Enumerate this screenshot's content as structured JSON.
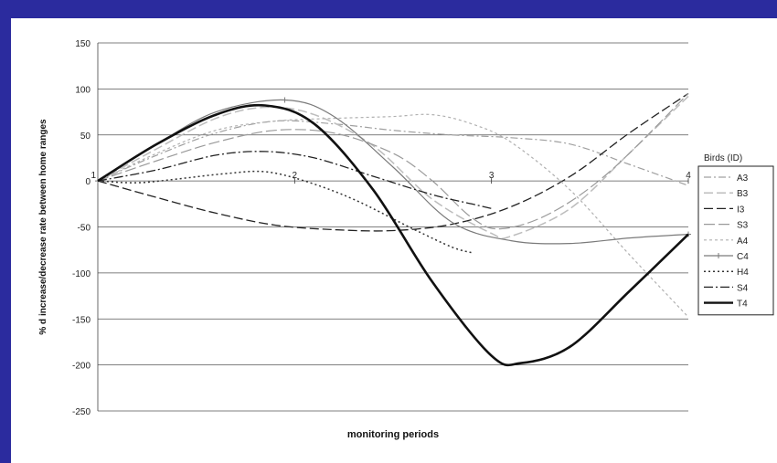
{
  "colors": {
    "slide_background": "#2b2b9e",
    "panel_background": "#ffffff"
  },
  "chart_data": {
    "type": "line",
    "title": "",
    "xlabel": "monitoring periods",
    "ylabel": "% d increase/decrease rate between home ranges",
    "x_ticks": [
      "1",
      "2",
      "3",
      "4"
    ],
    "xlim": [
      1,
      4
    ],
    "ylim": [
      -250,
      150
    ],
    "y_ticks": [
      150,
      100,
      50,
      0,
      -50,
      -100,
      -150,
      -200,
      -250
    ],
    "grid": "horizontal",
    "legend_title": "Birds (ID)",
    "legend_position": "right",
    "series": [
      {
        "name": "A3",
        "color": "#a0a0a0",
        "dash": "8,3,2,3",
        "width": 1.2,
        "points": [
          [
            1,
            0
          ],
          [
            1.3,
            28
          ],
          [
            1.6,
            52
          ],
          [
            1.9,
            65
          ],
          [
            2.2,
            62
          ],
          [
            2.5,
            55
          ],
          [
            2.8,
            50
          ],
          [
            3.1,
            47
          ],
          [
            3.4,
            40
          ],
          [
            3.7,
            18
          ],
          [
            4,
            -5
          ]
        ]
      },
      {
        "name": "B3",
        "color": "#bdbdbd",
        "dash": "10,4",
        "width": 1.5,
        "points": [
          [
            1,
            0
          ],
          [
            1.3,
            35
          ],
          [
            1.6,
            68
          ],
          [
            1.85,
            80
          ],
          [
            2.1,
            72
          ],
          [
            2.4,
            38
          ],
          [
            2.7,
            -20
          ],
          [
            3.0,
            -57
          ],
          [
            3.1,
            -60
          ],
          [
            3.4,
            -30
          ],
          [
            3.7,
            30
          ],
          [
            4,
            92
          ]
        ]
      },
      {
        "name": "I3",
        "color": "#222222",
        "dash": "10,4",
        "width": 1.3,
        "points": [
          [
            1,
            0
          ],
          [
            1.3,
            -18
          ],
          [
            1.6,
            -35
          ],
          [
            1.9,
            -48
          ],
          [
            2.2,
            -53
          ],
          [
            2.5,
            -54
          ],
          [
            2.8,
            -47
          ],
          [
            3.1,
            -28
          ],
          [
            3.4,
            5
          ],
          [
            3.7,
            52
          ],
          [
            4,
            95
          ]
        ]
      },
      {
        "name": "S3",
        "color": "#9a9a9a",
        "dash": "12,4",
        "width": 1.2,
        "points": [
          [
            1,
            0
          ],
          [
            1.3,
            22
          ],
          [
            1.6,
            42
          ],
          [
            1.9,
            55
          ],
          [
            2.2,
            52
          ],
          [
            2.5,
            30
          ],
          [
            2.7,
            0
          ],
          [
            2.9,
            -40
          ],
          [
            3.05,
            -52
          ],
          [
            3.3,
            -35
          ],
          [
            3.6,
            10
          ],
          [
            4,
            95
          ]
        ]
      },
      {
        "name": "A4",
        "color": "#b0b0b0",
        "dash": "3,3",
        "width": 1.2,
        "points": [
          [
            1,
            0
          ],
          [
            1.3,
            30
          ],
          [
            1.6,
            55
          ],
          [
            1.9,
            65
          ],
          [
            2.2,
            68
          ],
          [
            2.5,
            70
          ],
          [
            2.7,
            72
          ],
          [
            2.9,
            62
          ],
          [
            3.1,
            42
          ],
          [
            3.4,
            -10
          ],
          [
            3.7,
            -80
          ],
          [
            4,
            -148
          ]
        ]
      },
      {
        "name": "C4",
        "color": "#7a7a7a",
        "dash": "",
        "width": 1.2,
        "marker": true,
        "points": [
          [
            1,
            0
          ],
          [
            1.3,
            40
          ],
          [
            1.6,
            75
          ],
          [
            1.95,
            88
          ],
          [
            2.2,
            70
          ],
          [
            2.5,
            15
          ],
          [
            2.8,
            -45
          ],
          [
            3.1,
            -65
          ],
          [
            3.4,
            -68
          ],
          [
            3.7,
            -62
          ],
          [
            4,
            -58
          ]
        ]
      },
      {
        "name": "H4",
        "color": "#333333",
        "dash": "2,3",
        "width": 1.5,
        "points": [
          [
            1,
            0
          ],
          [
            1.2,
            -2
          ],
          [
            1.4,
            2
          ],
          [
            1.65,
            8
          ],
          [
            1.85,
            10
          ],
          [
            2.05,
            0
          ],
          [
            2.3,
            -20
          ],
          [
            2.6,
            -52
          ],
          [
            2.8,
            -72
          ],
          [
            2.9,
            -78
          ]
        ]
      },
      {
        "name": "S4",
        "color": "#222222",
        "dash": "10,3,2,3",
        "width": 1.3,
        "points": [
          [
            1,
            0
          ],
          [
            1.3,
            12
          ],
          [
            1.6,
            28
          ],
          [
            1.85,
            32
          ],
          [
            2.1,
            25
          ],
          [
            2.4,
            5
          ],
          [
            2.7,
            -15
          ],
          [
            2.9,
            -25
          ],
          [
            3.0,
            -30
          ]
        ]
      },
      {
        "name": "T4",
        "color": "#111111",
        "dash": "",
        "width": 2.6,
        "points": [
          [
            1,
            0
          ],
          [
            1.3,
            40
          ],
          [
            1.6,
            72
          ],
          [
            1.85,
            82
          ],
          [
            2.1,
            62
          ],
          [
            2.4,
            -10
          ],
          [
            2.7,
            -110
          ],
          [
            3.0,
            -190
          ],
          [
            3.15,
            -198
          ],
          [
            3.4,
            -180
          ],
          [
            3.7,
            -120
          ],
          [
            4,
            -58
          ]
        ]
      }
    ]
  }
}
